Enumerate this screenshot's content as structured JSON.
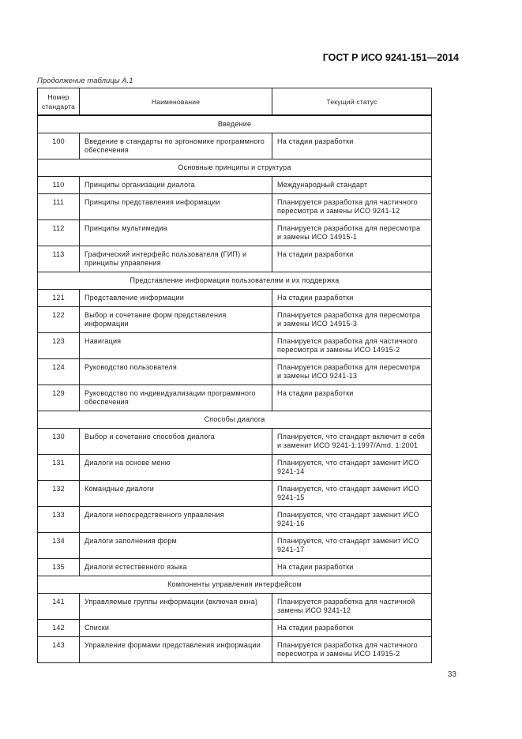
{
  "header": {
    "doc_code": "ГОСТ Р ИСО 9241-151—2014"
  },
  "caption": "Продолжение таблицы А.1",
  "table": {
    "columns": [
      "Номер стандарта",
      "Наименование",
      "Текущий статус"
    ],
    "rows": [
      {
        "section": "Введение"
      },
      {
        "num": "100",
        "name": "Введение в стандарты по эргономике программного обеспечения",
        "status": "На стадии разработки"
      },
      {
        "section": "Основные принципы и структура"
      },
      {
        "num": "110",
        "name": "Принципы организации диалога",
        "status": "Международный стандарт"
      },
      {
        "num": "111",
        "name": "Принципы представления информации",
        "status": "Планируется разработка для частичного пересмотра и замены ИСО 9241-12"
      },
      {
        "num": "112",
        "name": "Принципы мультимедиа",
        "status": "Планируется разработка для пересмотра и замены ИСО 14915-1"
      },
      {
        "num": "113",
        "name": "Графический интерфейс пользователя (ГИП) и принципы управления",
        "status": "На стадии разработки"
      },
      {
        "section": "Представление информации пользователям и их поддержка"
      },
      {
        "num": "121",
        "name": "Представление информации",
        "status": "На стадии разработки"
      },
      {
        "num": "122",
        "name": "Выбор и сочетание форм представления информации",
        "status": "Планируется разработка для пересмотра и замены ИСО 14915-3"
      },
      {
        "num": "123",
        "name": "Навигация",
        "status": "Планируется разработка для частичного пересмотра и замены ИСО 14915-2"
      },
      {
        "num": "124",
        "name": "Руководство пользователя",
        "status": "Планируется разработка для пересмотра и замены ИСО 9241-13"
      },
      {
        "num": "129",
        "name": "Руководство по индивидуализации программного обеспечения",
        "status": "На стадии разработки"
      },
      {
        "section": "Способы диалога"
      },
      {
        "num": "130",
        "name": "Выбор и сочетание способов диалога",
        "status": "Планируется, что стандарт включит в себя и заменит ИСО 9241-1:1997/Amd. 1:2001"
      },
      {
        "num": "131",
        "name": "Диалоги на основе меню",
        "status": "Планируется, что стандарт заменит ИСО 9241-14"
      },
      {
        "num": "132",
        "name": "Командные диалоги",
        "status": "Планируется, что стандарт заменит ИСО 9241-15"
      },
      {
        "num": "133",
        "name": "Диалоги непосредственного управления",
        "status": "Планируется, что стандарт заменит ИСО 9241-16"
      },
      {
        "num": "134",
        "name": "Диалоги заполнения форм",
        "status": "Планируется, что стандарт заменит ИСО 9241-17"
      },
      {
        "num": "135",
        "name": "Диалоги естественного языка",
        "status": "На стадии разработки"
      },
      {
        "section": "Компоненты управления интерфейсом"
      },
      {
        "num": "141",
        "name": "Управляемые группы информации (включая окна)",
        "status": "Планируется разработка для частичной замены ИСО 9241-12"
      },
      {
        "num": "142",
        "name": "Списки",
        "status": "На стадии разработки"
      },
      {
        "num": "143",
        "name": "Управление формами представления информации",
        "status": "Планируется разработка для частичного пересмотра и замены ИСО 14915-2"
      }
    ]
  },
  "page_number": "33"
}
